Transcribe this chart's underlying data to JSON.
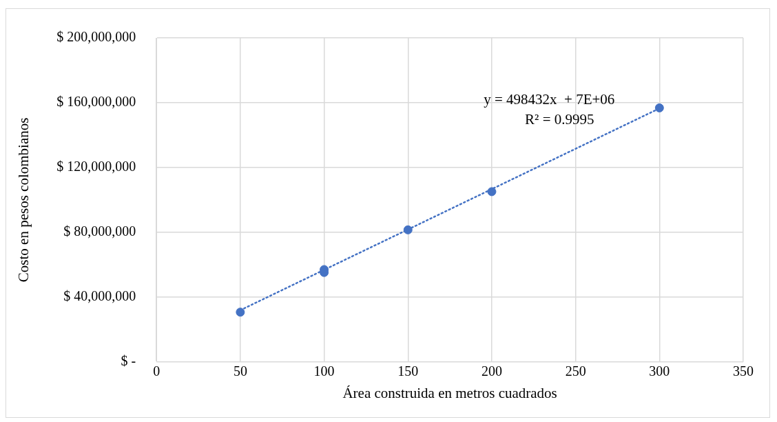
{
  "chart_data": {
    "type": "scatter",
    "xlabel": "Área construida en metros cuadrados",
    "ylabel": "Costo en pesos colombianos",
    "series": [
      {
        "color": "#4472c4",
        "x": [
          50,
          100,
          100,
          150,
          200,
          300
        ],
        "values": [
          30700000,
          57000000,
          55200000,
          81500000,
          105100000,
          156800000
        ],
        "marker": "circle"
      },
      {
        "type": "line",
        "color": "#4472c4",
        "x": [
          50,
          300
        ],
        "values": [
          31900000,
          156500000
        ],
        "line_style": "dotted",
        "marker": "none"
      }
    ],
    "xlim": [
      0,
      350
    ],
    "xticks": [
      0,
      50,
      100,
      150,
      200,
      250,
      300,
      350
    ],
    "ylim": [
      0,
      200000000
    ],
    "yticks": [
      {
        "value": 0,
        "label": "$ -"
      },
      {
        "value": 40000000,
        "label": "$ 40,000,000"
      },
      {
        "value": 80000000,
        "label": "$ 80,000,000"
      },
      {
        "value": 120000000,
        "label": "$ 120,000,000"
      },
      {
        "value": 160000000,
        "label": "$ 160,000,000"
      },
      {
        "value": 200000000,
        "label": "$ 200,000,000"
      }
    ],
    "annotations": [
      "y = 498432x  + 7E+06",
      "R² = 0.9995"
    ],
    "grid": true,
    "legend": false
  }
}
